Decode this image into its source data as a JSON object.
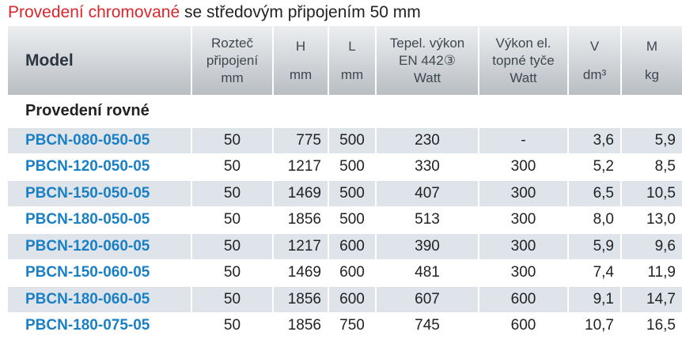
{
  "title": {
    "highlight": "Provedení chromované",
    "rest": "se středovým připojením 50 mm"
  },
  "table": {
    "header": [
      [
        "Model"
      ],
      [
        "Rozteč",
        "připojení",
        "mm"
      ],
      [
        "H",
        "mm"
      ],
      [
        "L",
        "mm"
      ],
      [
        "Tepel. výkon",
        "EN 442③",
        "Watt"
      ],
      [
        "Výkon el.",
        "topné tyče",
        "Watt"
      ],
      [
        "V",
        "dm³"
      ],
      [
        "M",
        "kg"
      ]
    ],
    "section": "Provedení rovné",
    "rows": [
      [
        "PBCN-080-050-05",
        "50",
        "775",
        "500",
        "230",
        "-",
        "3,6",
        "5,9"
      ],
      [
        "PBCN-120-050-05",
        "50",
        "1217",
        "500",
        "330",
        "300",
        "5,2",
        "8,5"
      ],
      [
        "PBCN-150-050-05",
        "50",
        "1469",
        "500",
        "407",
        "300",
        "6,5",
        "10,5"
      ],
      [
        "PBCN-180-050-05",
        "50",
        "1856",
        "500",
        "513",
        "300",
        "8,0",
        "13,0"
      ],
      [
        "PBCN-120-060-05",
        "50",
        "1217",
        "600",
        "390",
        "300",
        "5,9",
        "9,6"
      ],
      [
        "PBCN-150-060-05",
        "50",
        "1469",
        "600",
        "481",
        "300",
        "7,4",
        "11,9"
      ],
      [
        "PBCN-180-060-05",
        "50",
        "1856",
        "600",
        "607",
        "600",
        "9,1",
        "14,7"
      ],
      [
        "PBCN-180-075-05",
        "50",
        "1856",
        "750",
        "745",
        "600",
        "10,7",
        "16,5"
      ]
    ]
  }
}
